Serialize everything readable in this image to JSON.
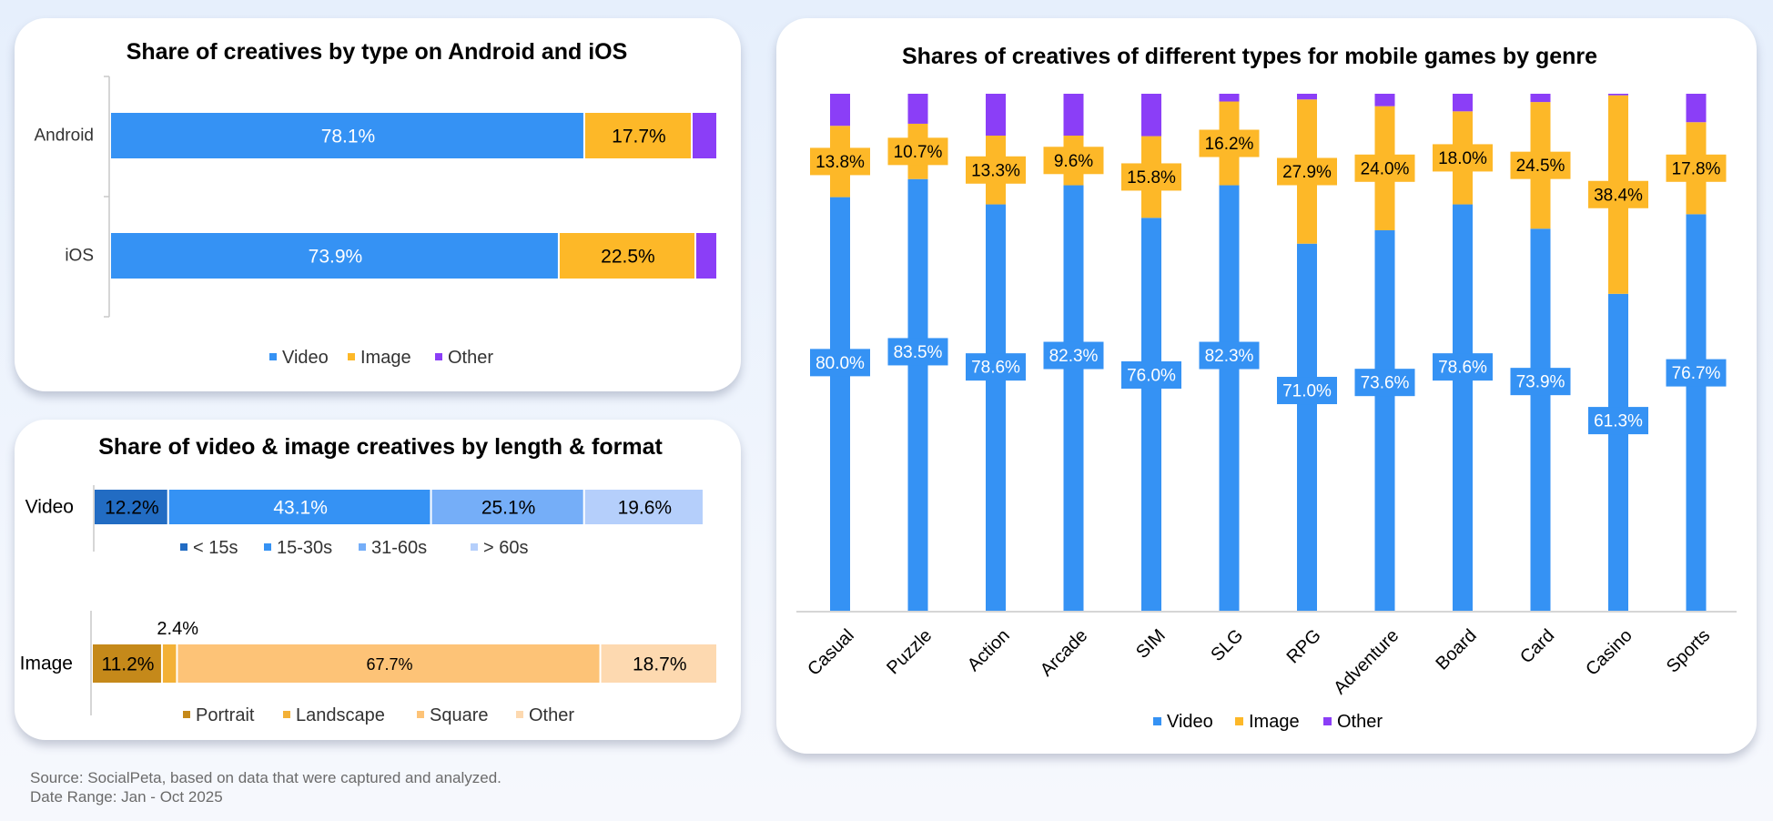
{
  "chart_data": [
    {
      "id": "platform",
      "type": "bar",
      "orientation": "horizontal",
      "stacked": true,
      "title": "Share of creatives by type on Android and iOS",
      "categories": [
        "Android",
        "iOS"
      ],
      "series": [
        {
          "name": "Video",
          "values": [
            78.1,
            73.9
          ],
          "labels": [
            "78.1%",
            "73.9%"
          ]
        },
        {
          "name": "Image",
          "values": [
            17.7,
            22.5
          ],
          "labels": [
            "17.7%",
            "22.5%"
          ]
        },
        {
          "name": "Other",
          "values": [
            4.2,
            3.6
          ],
          "labels": [
            "",
            ""
          ]
        }
      ],
      "legend_position": "bottom",
      "xlim": [
        0,
        100
      ]
    },
    {
      "id": "length-format",
      "type": "bar",
      "orientation": "horizontal",
      "stacked": true,
      "title": "Share of video & image creatives by length & format",
      "rows": [
        {
          "label": "Video",
          "segments": [
            {
              "name": "< 15s",
              "value": 12.2,
              "label": "12.2%"
            },
            {
              "name": "15-30s",
              "value": 43.1,
              "label": "43.1%"
            },
            {
              "name": "31-60s",
              "value": 25.1,
              "label": "25.1%"
            },
            {
              "name": "> 60s",
              "value": 19.6,
              "label": "19.6%"
            }
          ]
        },
        {
          "label": "Image",
          "segments": [
            {
              "name": "Portrait",
              "value": 11.2,
              "label": "11.2%"
            },
            {
              "name": "Landscape",
              "value": 2.4,
              "label": "2.4%"
            },
            {
              "name": "Square",
              "value": 67.7,
              "label": "67.7%"
            },
            {
              "name": "Other",
              "value": 18.7,
              "label": "18.7%"
            }
          ]
        }
      ],
      "legend_position": "below each bar",
      "xlim": [
        0,
        100
      ]
    },
    {
      "id": "genre",
      "type": "bar",
      "orientation": "vertical",
      "stacked": true,
      "title": "Shares of creatives of different types for mobile games by genre",
      "categories": [
        "Casual",
        "Puzzle",
        "Action",
        "Arcade",
        "SIM",
        "SLG",
        "RPG",
        "Adventure",
        "Board",
        "Card",
        "Casino",
        "Sports"
      ],
      "series": [
        {
          "name": "Video",
          "values": [
            80.0,
            83.5,
            78.6,
            82.3,
            76.0,
            82.3,
            71.0,
            73.6,
            78.6,
            73.9,
            61.3,
            76.7
          ],
          "labels": [
            "80.0%",
            "83.5%",
            "78.6%",
            "82.3%",
            "76.0%",
            "82.3%",
            "71.0%",
            "73.6%",
            "78.6%",
            "73.9%",
            "61.3%",
            "76.7%"
          ]
        },
        {
          "name": "Image",
          "values": [
            13.8,
            10.7,
            13.3,
            9.6,
            15.8,
            16.2,
            27.9,
            24.0,
            18.0,
            24.5,
            38.4,
            17.8
          ],
          "labels": [
            "13.8%",
            "10.7%",
            "13.3%",
            "9.6%",
            "15.8%",
            "16.2%",
            "27.9%",
            "24.0%",
            "18.0%",
            "24.5%",
            "38.4%",
            "17.8%"
          ]
        },
        {
          "name": "Other",
          "values": [
            6.2,
            5.8,
            8.1,
            8.1,
            8.2,
            1.5,
            1.1,
            2.4,
            3.4,
            1.6,
            0.3,
            5.5
          ],
          "labels": []
        }
      ],
      "legend_position": "bottom",
      "ylim": [
        0,
        100
      ]
    }
  ],
  "colors": {
    "video": "#3592f4",
    "image": "#fdb828",
    "other": "#8b3ef7",
    "len_lt15": "#226cc3",
    "len_15_30": "#3592f4",
    "len_31_60": "#75aef8",
    "len_gt60": "#b5cffb",
    "fmt_portrait": "#c5891a",
    "fmt_landscape": "#f3b137",
    "fmt_square": "#fdc377",
    "fmt_other": "#fdd9b0"
  },
  "footer": {
    "source": "Source: SocialPeta, based on data that were captured and analyzed.",
    "date_range": "Date Range: Jan - Oct 2025"
  }
}
